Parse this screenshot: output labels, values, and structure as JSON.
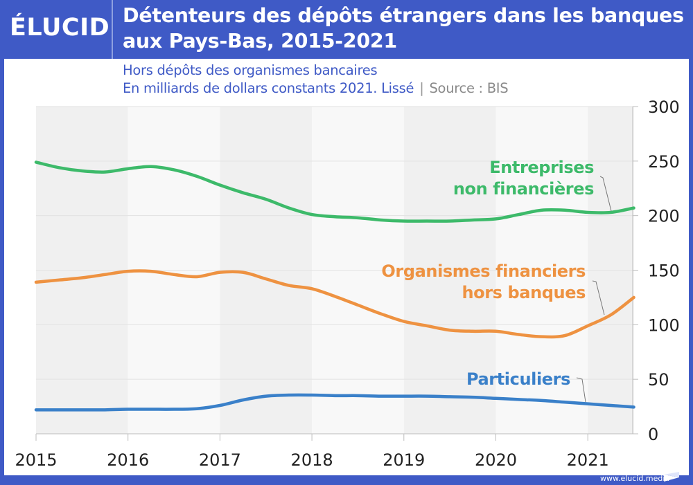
{
  "brand": {
    "name": "ÉLUCID",
    "website": "www.elucid.media"
  },
  "colors": {
    "brand_blue": "#3f5ac6",
    "green": "#3dba6a",
    "orange": "#ee9241",
    "blue": "#3a80c9",
    "band_dark": "#f0f0f0",
    "band_light": "#f8f8f8"
  },
  "header": {
    "title_line1": "Détenteurs des dépôts étrangers dans les banques",
    "title_line2": "aux Pays-Bas, 2015-2021"
  },
  "subtitle": {
    "line1": "Hors dépôts des organismes bancaires",
    "line2": "En milliards de dollars constants 2021. Lissé",
    "separator": "|",
    "source": "Source : BIS"
  },
  "chart_data": {
    "type": "line",
    "title": "Détenteurs des dépôts étrangers dans les banques aux Pays-Bas, 2015-2021",
    "subtitle": "Hors dépôts des organismes bancaires — En milliards de dollars constants 2021. Lissé",
    "source": "BIS",
    "xlabel": "",
    "ylabel": "",
    "xlim": [
      2015,
      2021.5
    ],
    "ylim": [
      0,
      300
    ],
    "x_ticks": [
      2015,
      2016,
      2017,
      2018,
      2019,
      2020,
      2021
    ],
    "x_tick_labels": [
      "2015",
      "2016",
      "2017",
      "2018",
      "2019",
      "2020",
      "2021"
    ],
    "y_ticks": [
      0,
      50,
      100,
      150,
      200,
      250,
      300
    ],
    "y_tick_labels": [
      "0",
      "50",
      "100",
      "150",
      "200",
      "250",
      "300"
    ],
    "y_axis_side": "right",
    "grid": "horizontal",
    "alternating_year_bands": true,
    "legend": "inline-labels",
    "x": [
      2015,
      2015.25,
      2015.5,
      2015.75,
      2016,
      2016.25,
      2016.5,
      2016.75,
      2017,
      2017.25,
      2017.5,
      2017.75,
      2018,
      2018.25,
      2018.5,
      2018.75,
      2019,
      2019.25,
      2019.5,
      2019.75,
      2020,
      2020.25,
      2020.5,
      2020.75,
      2021,
      2021.25,
      2021.5
    ],
    "series": [
      {
        "name": "Entreprises non financières",
        "label_lines": [
          "Entreprises",
          "non financières"
        ],
        "color": "#3dba6a",
        "values": [
          249,
          244,
          241,
          240,
          243,
          245,
          242,
          236,
          228,
          221,
          215,
          207,
          201,
          199,
          198,
          196,
          195,
          195,
          195,
          196,
          197,
          201,
          205,
          205,
          203,
          203,
          207
        ]
      },
      {
        "name": "Organismes financiers hors banques",
        "label_lines": [
          "Organismes financiers",
          "hors banques"
        ],
        "color": "#ee9241",
        "values": [
          139,
          141,
          143,
          146,
          149,
          149,
          146,
          144,
          148,
          148,
          142,
          136,
          133,
          126,
          118,
          110,
          103,
          99,
          95,
          94,
          94,
          91,
          89,
          90,
          99,
          109,
          125
        ]
      },
      {
        "name": "Particuliers",
        "label_lines": [
          "Particuliers"
        ],
        "color": "#3a80c9",
        "values": [
          22,
          22,
          22,
          22,
          22.5,
          22.5,
          22.5,
          23,
          26,
          31,
          34.5,
          35.5,
          35.5,
          35,
          35,
          34.5,
          34.5,
          34.5,
          34,
          33.5,
          32.5,
          31.5,
          30.5,
          29,
          27.5,
          26,
          24.5
        ]
      }
    ],
    "annotations": [
      {
        "series": "Entreprises non financières",
        "points_to": [
          2021.25,
          203
        ]
      },
      {
        "series": "Organismes financiers hors banques",
        "points_to": [
          2021.2,
          107
        ]
      },
      {
        "series": "Particuliers",
        "points_to": [
          2021.0,
          28
        ]
      }
    ]
  }
}
